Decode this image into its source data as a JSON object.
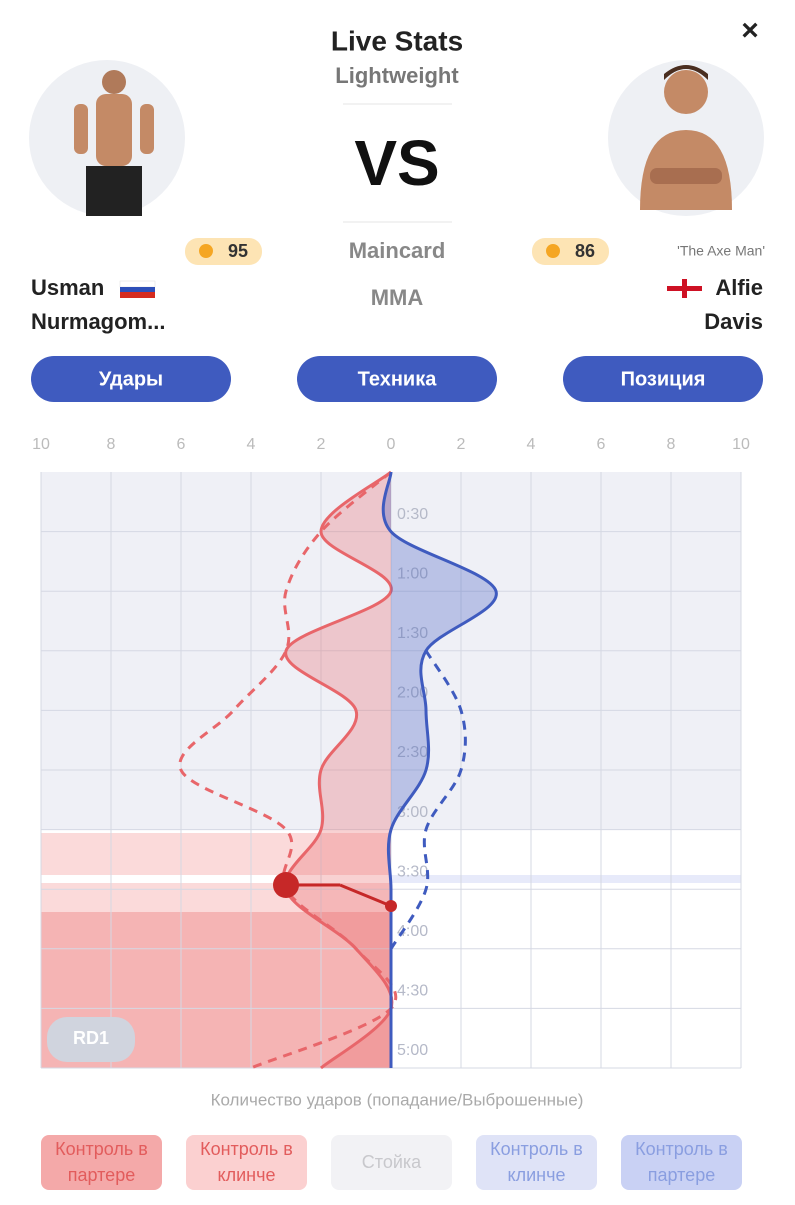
{
  "header": {
    "title": "Live Stats",
    "subtitle": "Lightweight",
    "vs": "VS",
    "card": "Maincard",
    "sport": "MMA",
    "close": "×"
  },
  "fighters": [
    {
      "first": "Usman",
      "last": "Nurmagom...",
      "rating": 95
    },
    {
      "nickname": "'The Axe Man'",
      "first": "Alfie",
      "last": "Davis",
      "rating": 86
    }
  ],
  "tabs": [
    "Удары",
    "Техника",
    "Позиция"
  ],
  "chart_data": {
    "type": "line",
    "x": [
      0,
      30,
      60,
      90,
      120,
      150,
      180,
      210,
      240,
      270,
      300
    ],
    "xlim": [
      -10,
      10
    ],
    "xticks": [
      {
        "value": -10,
        "label": "10"
      },
      {
        "value": -8,
        "label": "8"
      },
      {
        "value": -6,
        "label": "6"
      },
      {
        "value": -4,
        "label": "4"
      },
      {
        "value": -2,
        "label": "2"
      },
      0,
      2,
      4,
      6,
      8,
      10
    ],
    "ylim": [
      0,
      300
    ],
    "yticks": [
      {
        "value": 30,
        "label": "0:30"
      },
      {
        "value": 60,
        "label": "1:00"
      },
      {
        "value": 90,
        "label": "1:30"
      },
      {
        "value": 120,
        "label": "2:00"
      },
      {
        "value": 150,
        "label": "2:30"
      },
      {
        "value": 180,
        "label": "3:00"
      },
      {
        "value": 210,
        "label": "3:30"
      },
      {
        "value": 240,
        "label": "4:00"
      },
      {
        "value": 270,
        "label": "4:30"
      },
      {
        "value": 300,
        "label": "5:00"
      }
    ],
    "grid": true,
    "series": [
      {
        "color": "#e8666a",
        "fill": true,
        "dashed": false,
        "values": [
          0,
          -2,
          0,
          -3,
          -1,
          -2,
          -2,
          -3,
          -1,
          0,
          -2
        ]
      },
      {
        "color": "#e8666a",
        "fill": false,
        "dashed": true,
        "values": [
          0,
          -2,
          -3,
          -3,
          -4.5,
          -6,
          -3,
          -3,
          -1,
          0,
          -4
        ]
      },
      {
        "color": "#3f5bbf",
        "fill": true,
        "dashed": false,
        "values": [
          0,
          0,
          3,
          1,
          1,
          1,
          0,
          0,
          0,
          0,
          0
        ]
      },
      {
        "color": "#3f5bbf",
        "fill": false,
        "dashed": true,
        "values": [
          null,
          null,
          null,
          1,
          2,
          2,
          1,
          1,
          0,
          null,
          null
        ]
      }
    ],
    "round": "RD1",
    "caption": "Количество ударов (попадание/Выброшенные)",
    "legend": [
      "Контроль в партере",
      "Контроль в клинче",
      "Стойка",
      "Контроль в клинче",
      "Контроль в партере"
    ]
  }
}
